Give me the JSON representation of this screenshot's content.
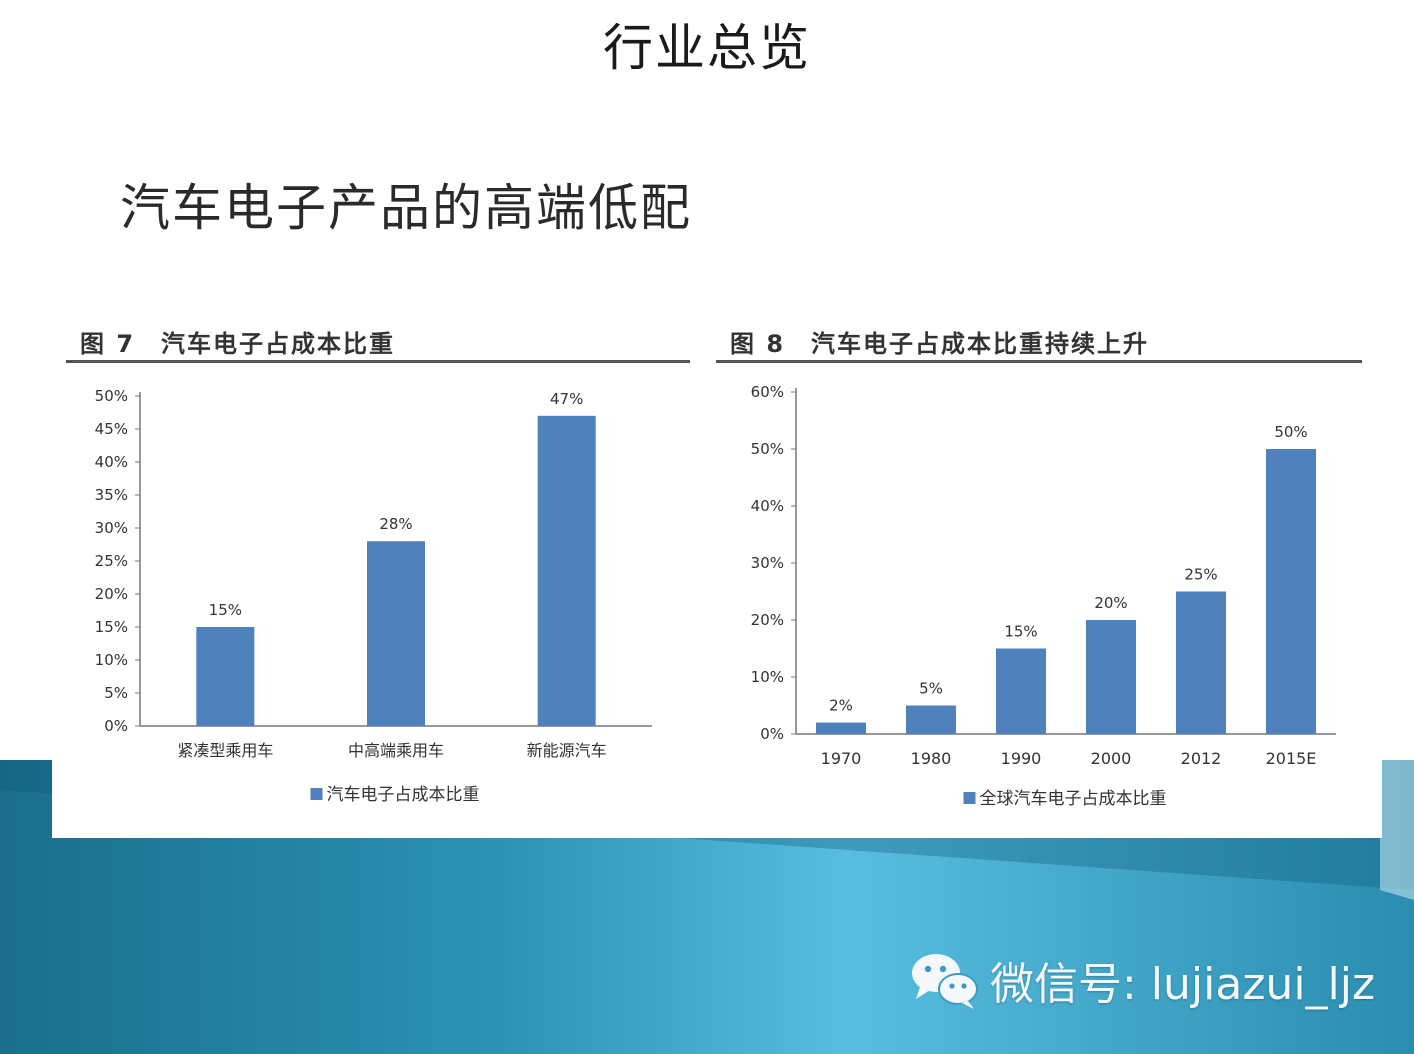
{
  "slide": {
    "title": "行业总览",
    "subtitle": "汽车电子产品的高端低配"
  },
  "figures": [
    {
      "caption": "图 7　汽车电子占成本比重"
    },
    {
      "caption": "图 8　汽车电子占成本比重持续上升"
    }
  ],
  "watermark": {
    "icon": "wechat-icon",
    "text": "微信号: lujiazui_ljz"
  },
  "colors": {
    "bar": "#4f81bd",
    "band_dark": "#1a7090",
    "band_light": "#5cc0e0"
  },
  "chart_data": [
    {
      "type": "bar",
      "title": "汽车电子占成本比重",
      "categories": [
        "紧凑型乘用车",
        "中高端乘用车",
        "新能源汽车"
      ],
      "series": [
        {
          "name": "汽车电子占成本比重",
          "values": [
            15,
            28,
            47
          ]
        }
      ],
      "data_labels": [
        "15%",
        "28%",
        "47%"
      ],
      "yticks": [
        "0%",
        "5%",
        "10%",
        "15%",
        "20%",
        "25%",
        "30%",
        "35%",
        "40%",
        "45%",
        "50%"
      ],
      "ylim": [
        0,
        50
      ],
      "legend": "bottom",
      "grid": false
    },
    {
      "type": "bar",
      "title": "汽车电子占成本比重持续上升",
      "categories": [
        "1970",
        "1980",
        "1990",
        "2000",
        "2012",
        "2015E"
      ],
      "series": [
        {
          "name": "全球汽车电子占成本比重",
          "values": [
            2,
            5,
            15,
            20,
            25,
            50
          ]
        }
      ],
      "data_labels": [
        "2%",
        "5%",
        "15%",
        "20%",
        "25%",
        "50%"
      ],
      "yticks": [
        "0%",
        "10%",
        "20%",
        "30%",
        "40%",
        "50%",
        "60%"
      ],
      "ylim": [
        0,
        60
      ],
      "legend": "bottom",
      "grid": false
    }
  ]
}
